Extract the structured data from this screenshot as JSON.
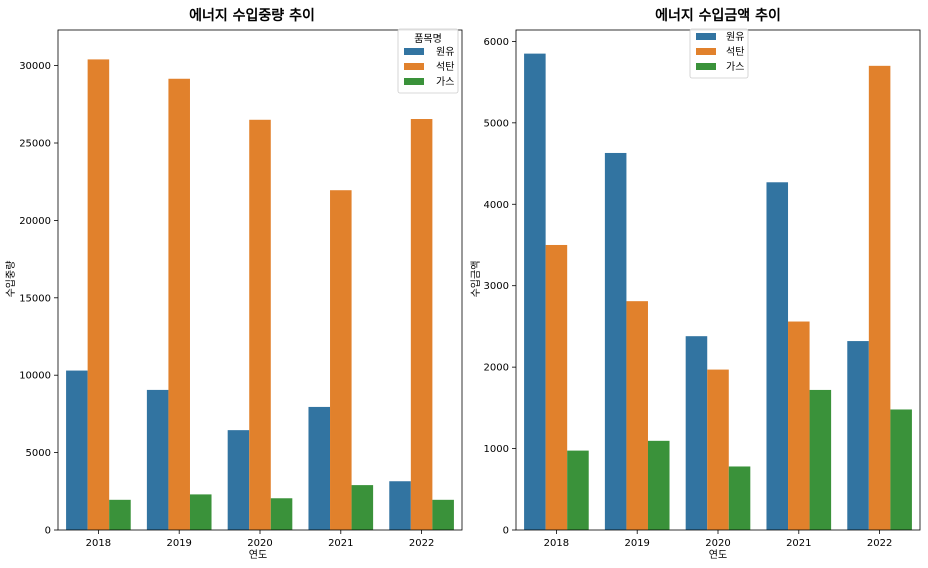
{
  "chart_data": [
    {
      "type": "bar",
      "title": "에너지 수입중량 추이",
      "xlabel": "연도",
      "ylabel": "수입중량",
      "categories": [
        "2018",
        "2019",
        "2020",
        "2021",
        "2022"
      ],
      "ylim": [
        0,
        32300
      ],
      "yticks": [
        0,
        5000,
        10000,
        15000,
        20000,
        25000,
        30000
      ],
      "legend": {
        "title": "품목명",
        "placement": "top-right"
      },
      "series": [
        {
          "name": "원유",
          "color": "#3274a1",
          "values": [
            10300,
            9050,
            6450,
            7950,
            3150
          ]
        },
        {
          "name": "석탄",
          "color": "#e1812c",
          "values": [
            30400,
            29150,
            26500,
            21950,
            26550
          ]
        },
        {
          "name": "가스",
          "color": "#3a923a",
          "values": [
            1950,
            2300,
            2050,
            2900,
            1950
          ]
        }
      ]
    },
    {
      "type": "bar",
      "title": "에너지 수입금액 추이",
      "xlabel": "연도",
      "ylabel": "수입금액",
      "categories": [
        "2018",
        "2019",
        "2020",
        "2021",
        "2022"
      ],
      "ylim": [
        0,
        6140
      ],
      "yticks": [
        0,
        1000,
        2000,
        3000,
        4000,
        5000,
        6000
      ],
      "legend": {
        "title": "",
        "placement": "top-center"
      },
      "series": [
        {
          "name": "원유",
          "color": "#3274a1",
          "values": [
            5850,
            4630,
            2380,
            4270,
            2320
          ]
        },
        {
          "name": "석탄",
          "color": "#e1812c",
          "values": [
            3500,
            2810,
            1970,
            2560,
            5700
          ]
        },
        {
          "name": "가스",
          "color": "#3a923a",
          "values": [
            975,
            1095,
            780,
            1720,
            1480
          ]
        }
      ]
    }
  ]
}
